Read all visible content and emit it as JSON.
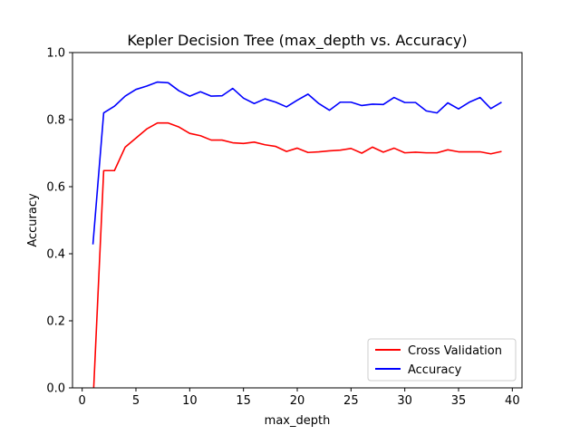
{
  "chart_data": {
    "type": "line",
    "title": "Kepler Decision Tree (max_depth vs. Accuracy)",
    "xlabel": "max_depth",
    "ylabel": "Accuracy",
    "xlim": [
      -0.9,
      40.9
    ],
    "ylim": [
      0.0,
      1.0
    ],
    "xticks": [
      0,
      5,
      10,
      15,
      20,
      25,
      30,
      35,
      40
    ],
    "yticks": [
      0.0,
      0.2,
      0.4,
      0.6,
      0.8,
      1.0
    ],
    "xtick_labels": [
      "0",
      "5",
      "10",
      "15",
      "20",
      "25",
      "30",
      "35",
      "40"
    ],
    "ytick_labels": [
      "0.0",
      "0.2",
      "0.4",
      "0.6",
      "0.8",
      "1.0"
    ],
    "grid": false,
    "legend_position": "lower-right",
    "x": [
      1,
      2,
      3,
      4,
      5,
      6,
      7,
      8,
      9,
      10,
      11,
      12,
      13,
      14,
      15,
      16,
      17,
      18,
      19,
      20,
      21,
      22,
      23,
      24,
      25,
      26,
      27,
      28,
      29,
      30,
      31,
      32,
      33,
      34,
      35,
      36,
      37,
      38,
      39
    ],
    "series": [
      {
        "name": "Cross Validation",
        "color": "#ff0000",
        "values": [
          -0.05,
          0.648,
          0.648,
          0.718,
          0.745,
          0.772,
          0.79,
          0.79,
          0.778,
          0.759,
          0.752,
          0.739,
          0.739,
          0.731,
          0.729,
          0.733,
          0.725,
          0.72,
          0.705,
          0.715,
          0.702,
          0.704,
          0.707,
          0.709,
          0.714,
          0.7,
          0.718,
          0.703,
          0.715,
          0.701,
          0.703,
          0.701,
          0.701,
          0.71,
          0.704,
          0.704,
          0.704,
          0.698,
          0.705
        ]
      },
      {
        "name": "Accuracy",
        "color": "#0000ff",
        "values": [
          0.428,
          0.82,
          0.84,
          0.87,
          0.89,
          0.9,
          0.912,
          0.91,
          0.886,
          0.87,
          0.883,
          0.87,
          0.871,
          0.893,
          0.864,
          0.848,
          0.862,
          0.852,
          0.838,
          0.858,
          0.876,
          0.848,
          0.828,
          0.852,
          0.852,
          0.842,
          0.846,
          0.845,
          0.866,
          0.851,
          0.851,
          0.826,
          0.82,
          0.85,
          0.832,
          0.852,
          0.866,
          0.833,
          0.852
        ]
      }
    ]
  }
}
